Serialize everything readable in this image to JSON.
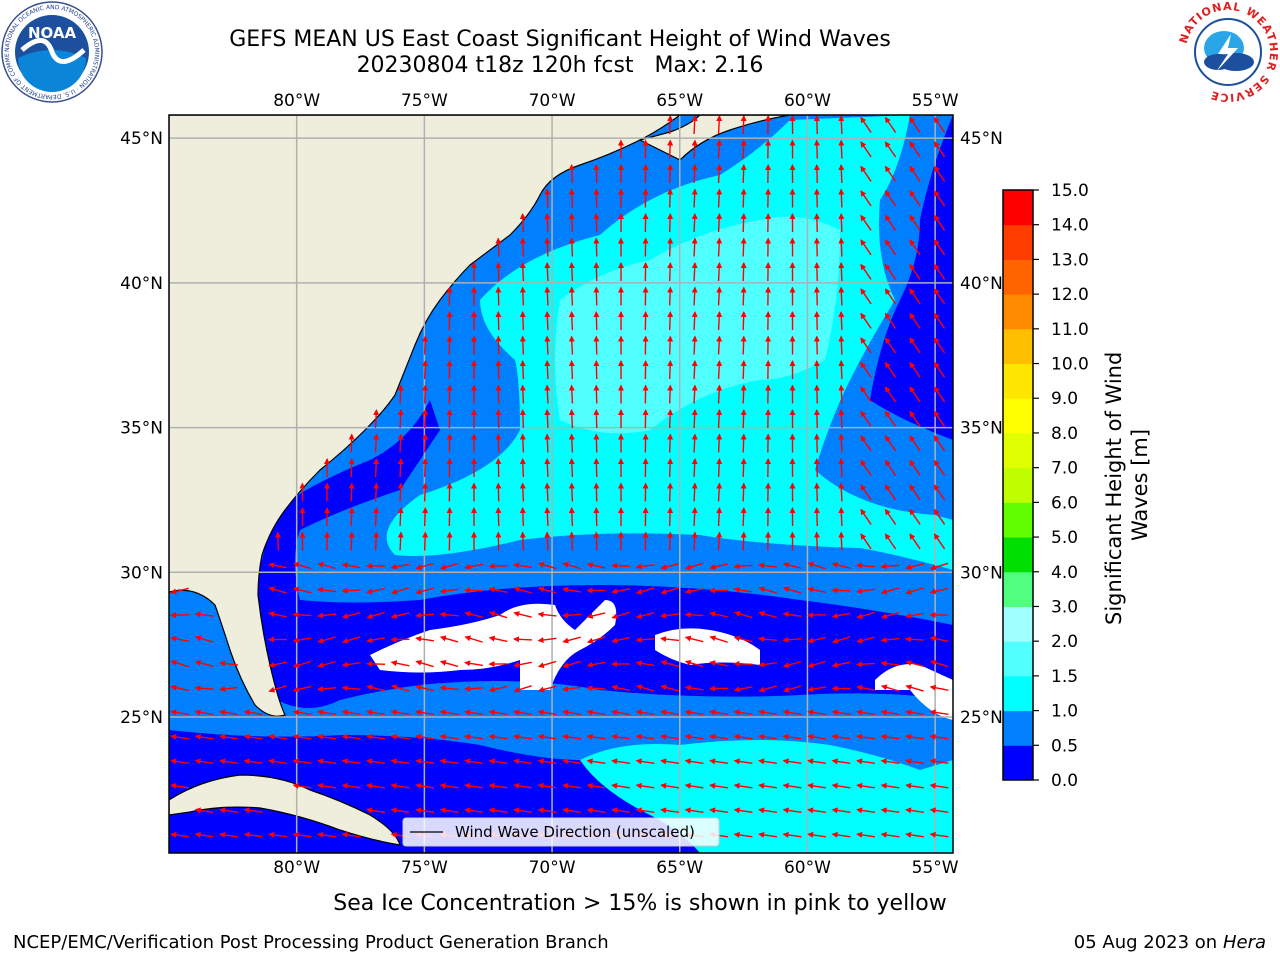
{
  "header": {
    "title_line1": "GEFS MEAN US East Coast Significant Height of Wind Waves",
    "title_line2": "20230804 t18z 120h fcst",
    "max_label": "Max: 2.16"
  },
  "logos": {
    "noaa_text": "NOAA",
    "noaa_ring_text": "NATIONAL OCEANIC AND ATMOSPHERIC ADMINISTRATION · U.S. DEPARTMENT OF COMMERCE",
    "nws_ring_text": "NATIONAL WEATHER SERVICE"
  },
  "map": {
    "lon_min": -85,
    "lon_max": -54.3,
    "lat_min": 20.3,
    "lat_max": 45.8,
    "lon_ticks": [
      {
        "value": -80,
        "label": "80°W"
      },
      {
        "value": -75,
        "label": "75°W"
      },
      {
        "value": -70,
        "label": "70°W"
      },
      {
        "value": -65,
        "label": "65°W"
      },
      {
        "value": -60,
        "label": "60°W"
      },
      {
        "value": -55,
        "label": "55°W"
      }
    ],
    "lat_ticks": [
      {
        "value": 45,
        "label": "45°N"
      },
      {
        "value": 40,
        "label": "40°N"
      },
      {
        "value": 35,
        "label": "35°N"
      },
      {
        "value": 30,
        "label": "30°N"
      },
      {
        "value": 25,
        "label": "25°N"
      }
    ],
    "gridlines": true,
    "legend_label": "Wind Wave Direction (unscaled)",
    "legend_placement": "bottom-center",
    "land_color": "#efeedc",
    "vector_color": "#ff0000",
    "field_max": 2.16
  },
  "colorbar": {
    "label": "Significant Height of Wind Waves [m]",
    "levels": [
      "0.0",
      "0.5",
      "1.0",
      "1.5",
      "2.0",
      "3.0",
      "4.0",
      "5.0",
      "6.0",
      "7.0",
      "8.0",
      "9.0",
      "10.0",
      "11.0",
      "12.0",
      "13.0",
      "14.0",
      "15.0"
    ],
    "colors": [
      "#0000ff",
      "#0080ff",
      "#00ffff",
      "#50ffff",
      "#a0ffff",
      "#50ff80",
      "#00e000",
      "#60ff00",
      "#c0ff00",
      "#e0ff00",
      "#ffff00",
      "#ffe600",
      "#ffbe00",
      "#ff8c00",
      "#ff6400",
      "#ff3c00",
      "#ff0000"
    ]
  },
  "subtitle": "Sea Ice Concentration > 15% is shown in pink to yellow",
  "footer": {
    "left": "NCEP/EMC/Verification Post Processing Product Generation Branch",
    "date": "05 Aug 2023 on",
    "machine": "Hera"
  }
}
